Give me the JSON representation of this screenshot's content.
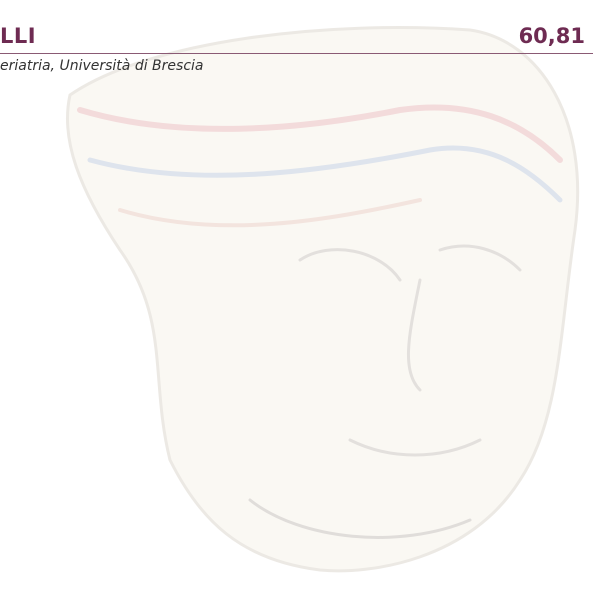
{
  "header": {
    "name": "LLI",
    "score": "60,81",
    "affiliation": "eriatria, Università di Brescia"
  }
}
